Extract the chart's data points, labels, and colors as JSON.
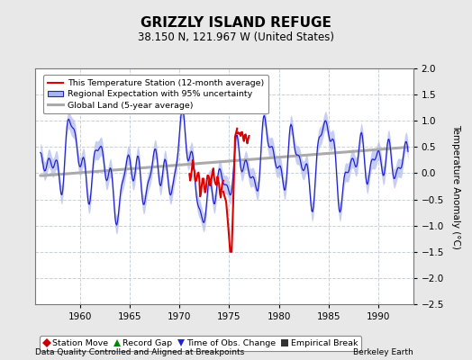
{
  "title": "GRIZZLY ISLAND REFUGE",
  "subtitle": "38.150 N, 121.967 W (United States)",
  "ylabel": "Temperature Anomaly (°C)",
  "xlabel_left": "Data Quality Controlled and Aligned at Breakpoints",
  "xlabel_right": "Berkeley Earth",
  "xlim": [
    1955.5,
    1993.5
  ],
  "ylim": [
    -2.5,
    2.0
  ],
  "yticks": [
    -2.5,
    -2.0,
    -1.5,
    -1.0,
    -0.5,
    0.0,
    0.5,
    1.0,
    1.5,
    2.0
  ],
  "xticks": [
    1960,
    1965,
    1970,
    1975,
    1980,
    1985,
    1990
  ],
  "background_color": "#e8e8e8",
  "plot_bg_color": "#ffffff",
  "grid_color": "#c8d0d8",
  "blue_line_color": "#2222cc",
  "blue_fill_color": "#aab4ee",
  "red_line_color": "#dd0000",
  "gray_line_color": "#aaaaaa",
  "legend1_items": [
    "This Temperature Station (12-month average)",
    "Regional Expectation with 95% uncertainty",
    "Global Land (5-year average)"
  ]
}
